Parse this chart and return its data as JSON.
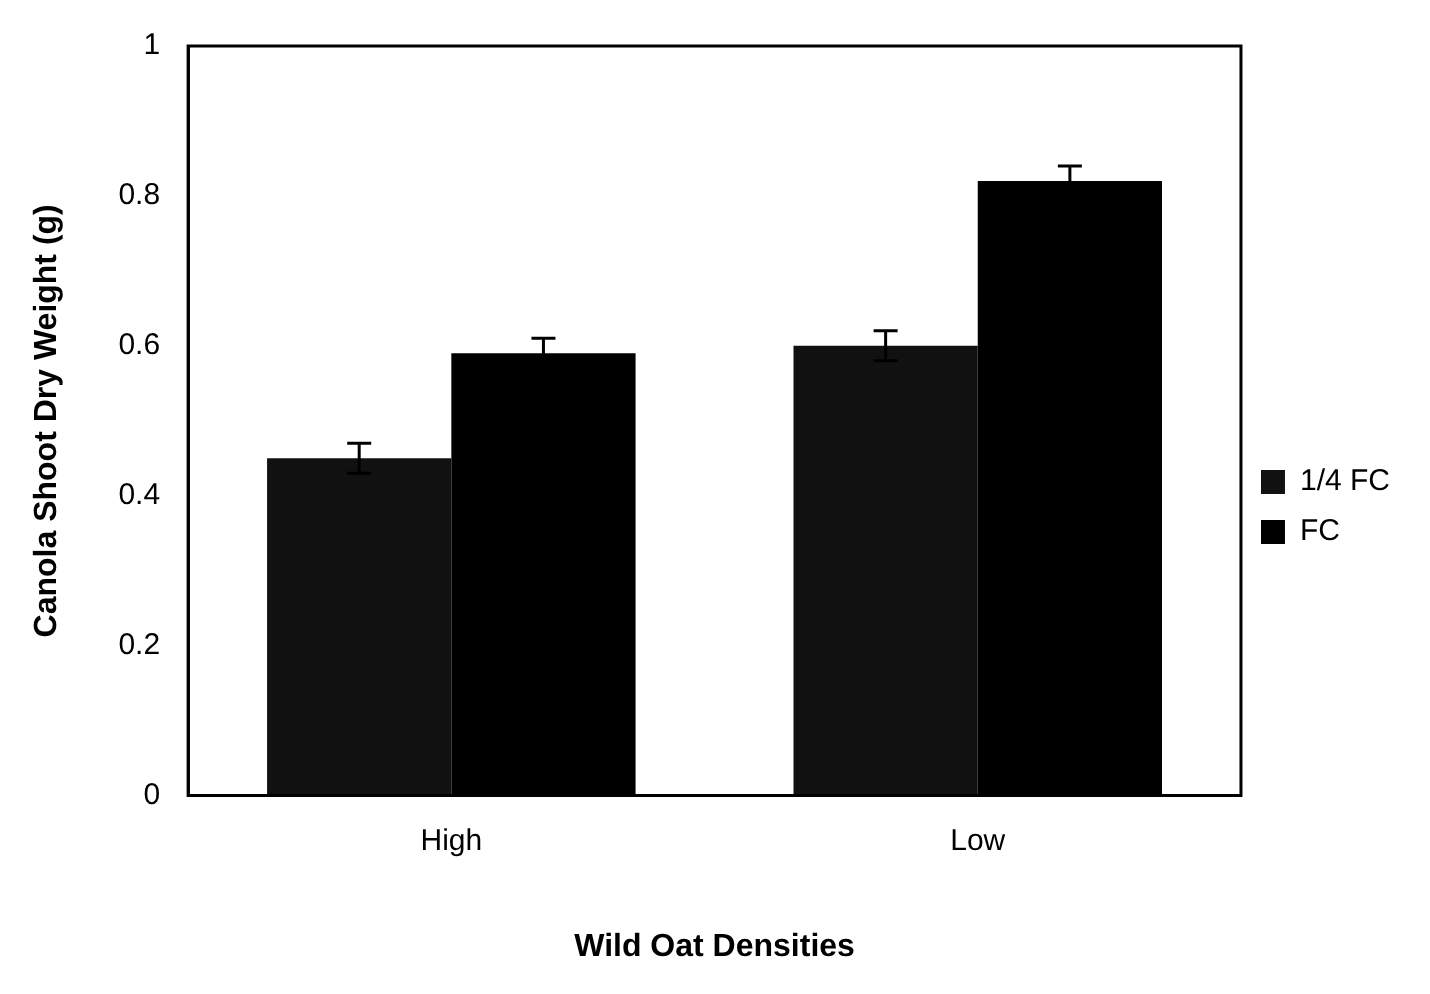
{
  "chart_data": {
    "type": "bar",
    "xlabel": "Wild Oat Densities",
    "ylabel": "Canola Shoot Dry Weight (g)",
    "categories": [
      "High",
      "Low"
    ],
    "series": [
      {
        "name": "1/4 FC",
        "color": "#111111",
        "values": [
          0.45,
          0.6
        ],
        "errors": [
          0.02,
          0.02
        ]
      },
      {
        "name": "FC",
        "color": "#000000",
        "values": [
          0.59,
          0.82
        ],
        "errors": [
          0.02,
          0.02
        ]
      }
    ],
    "ylim": [
      0,
      1
    ],
    "yticks": [
      0,
      0.2,
      0.4,
      0.6,
      0.8,
      1
    ],
    "grid": false,
    "legend": "right"
  }
}
